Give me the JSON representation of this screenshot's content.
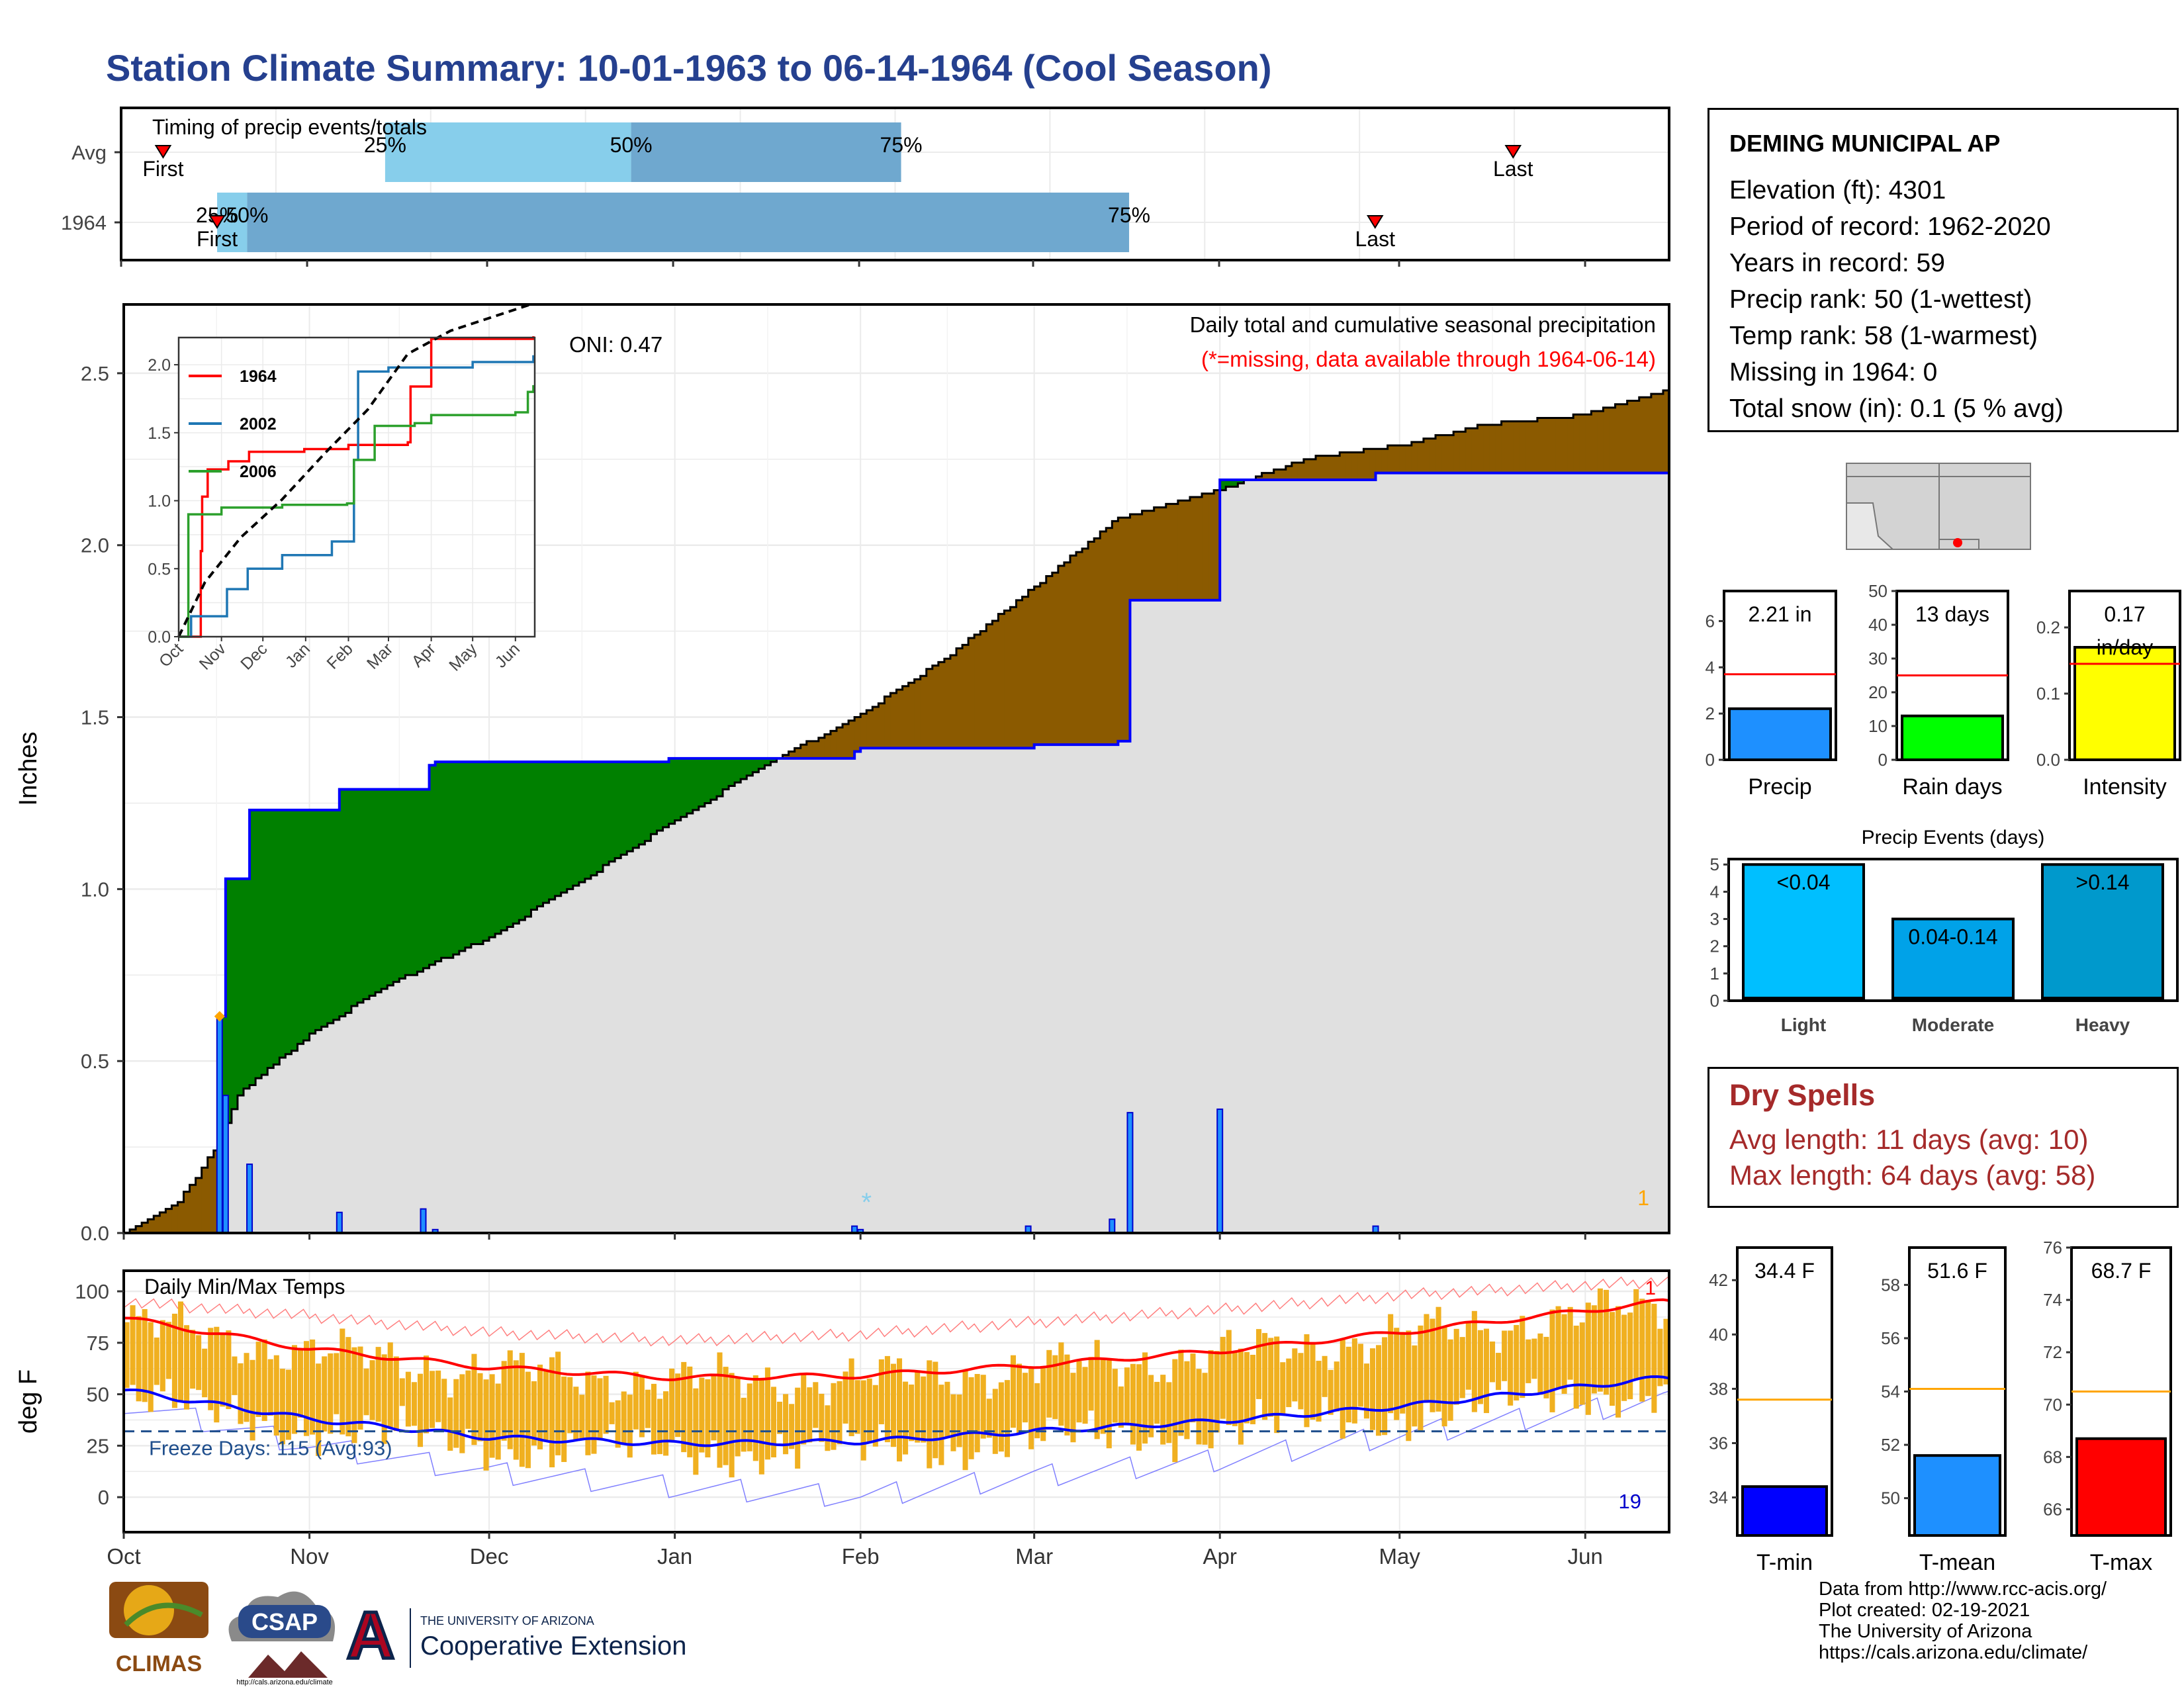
{
  "page": {
    "title": "Station Climate Summary: 10-01-1963 to 06-14-1964 (Cool Season)"
  },
  "station": {
    "name": "DEMING MUNICIPAL AP",
    "lines": [
      "Elevation (ft): 4301",
      "Period of record: 1962-2020",
      "Years in record: 59",
      "Precip rank: 50 (1-wettest)",
      "Temp rank: 58 (1-warmest)",
      "Missing in 1964: 0",
      "Total snow (in): 0.1 (5 % avg)"
    ]
  },
  "dry_spells": {
    "title": "Dry Spells",
    "avg_length": "Avg length: 11 days (avg: 10)",
    "max_length": "Max length: 64 days (avg: 58)"
  },
  "credits": [
    "Data from http://www.rcc-acis.org/",
    "Plot created: 02-19-2021",
    "The University of Arizona",
    "https://cals.arizona.edu/climate/"
  ],
  "logos": {
    "climas": "CLIMAS",
    "csap": "CSAP",
    "csap_url": "http://cals.arizona.edu/climate",
    "ua_line1": "THE UNIVERSITY OF ARIZONA",
    "ua_line2": "Cooperative Extension",
    "ua_letter": "A"
  },
  "colors": {
    "title": "#25408f",
    "bar_light": "#87ceeb",
    "bar_dark": "#6fa8cf",
    "green": "#008000",
    "brown": "#8b5a00",
    "grey_fill": "#e0e0e0",
    "obs_line": "#0000ff",
    "precip_bar": "#1e90ff",
    "raindays_bar": "#00ff00",
    "intensity_bar": "#ffff00",
    "event_light": "#00bfff",
    "event_mod": "#00a2e8",
    "event_heavy": "#0099cc",
    "tmin": "#0000ff",
    "tmean": "#1e90ff",
    "tmax": "#ff0000",
    "temp_bars": "#f0b020"
  },
  "chart_data": [
    {
      "id": "timing",
      "type": "bar",
      "title": "Timing of precip events/totals",
      "categories": [
        "Avg",
        "1964"
      ],
      "x_domain": [
        "10-01",
        "06-14"
      ],
      "rows": [
        {
          "label": "Avg",
          "q25": "11-14",
          "q50": "12-25",
          "q75": "02-08",
          "first": "10-08",
          "last": "05-20",
          "q25_label": "25%",
          "q50_label": "50%",
          "q75_label": "75%",
          "first_label": "First",
          "last_label": "Last"
        },
        {
          "label": "1964",
          "q25": "10-17",
          "q50": "10-22",
          "q75": "03-17",
          "first": "10-17",
          "last": "04-27",
          "q25_label": "25%",
          "q50_label": "50%",
          "q75_label": "75%",
          "first_label": "First",
          "last_label": "Last"
        }
      ]
    },
    {
      "id": "precip",
      "type": "area",
      "title": "Daily total and cumulative seasonal precipitation",
      "subtitle": "(*=missing, data available through 1964-06-14)",
      "annotation": "ONI: 0.47",
      "missing_count": "1",
      "ylabel": "Inches",
      "ylim": [
        0,
        2.7
      ],
      "yticks": [
        "0.0",
        "0.5",
        "1.0",
        "1.5",
        "2.0",
        "2.5"
      ],
      "xticks": [
        "Oct",
        "Nov",
        "Dec",
        "Jan",
        "Feb",
        "Mar",
        "Apr",
        "May",
        "Jun"
      ],
      "x_start": "10-01",
      "x_end": "06-14",
      "observed_cumulative": [
        [
          "10-01",
          0
        ],
        [
          "10-17",
          0.63
        ],
        [
          "10-18",
          1.03
        ],
        [
          "10-22",
          1.23
        ],
        [
          "11-06",
          1.29
        ],
        [
          "11-21",
          1.36
        ],
        [
          "11-22",
          1.37
        ],
        [
          "12-01",
          1.37
        ],
        [
          "12-31",
          1.38
        ],
        [
          "01-31",
          1.4
        ],
        [
          "02-01",
          1.41
        ],
        [
          "03-01",
          1.42
        ],
        [
          "03-15",
          1.43
        ],
        [
          "03-17",
          1.84
        ],
        [
          "04-01",
          2.19
        ],
        [
          "04-27",
          2.21
        ],
        [
          "06-14",
          2.21
        ]
      ],
      "average_cumulative": [
        [
          "10-01",
          0
        ],
        [
          "10-10",
          0.09
        ],
        [
          "10-16",
          0.24
        ],
        [
          "10-20",
          0.4
        ],
        [
          "11-01",
          0.58
        ],
        [
          "11-15",
          0.73
        ],
        [
          "12-01",
          0.86
        ],
        [
          "12-15",
          1.01
        ],
        [
          "01-01",
          1.2
        ],
        [
          "01-15",
          1.35
        ],
        [
          "02-01",
          1.51
        ],
        [
          "02-15",
          1.67
        ],
        [
          "03-01",
          1.88
        ],
        [
          "03-15",
          2.08
        ],
        [
          "04-01",
          2.16
        ],
        [
          "04-15",
          2.25
        ],
        [
          "05-01",
          2.29
        ],
        [
          "05-15",
          2.35
        ],
        [
          "06-01",
          2.38
        ],
        [
          "06-14",
          2.45
        ]
      ],
      "daily_precip": [
        [
          "10-17",
          0.63
        ],
        [
          "10-18",
          0.4
        ],
        [
          "10-22",
          0.2
        ],
        [
          "11-06",
          0.06
        ],
        [
          "11-20",
          0.07
        ],
        [
          "11-22",
          0.01
        ],
        [
          "01-31",
          0.02
        ],
        [
          "02-01",
          0.01
        ],
        [
          "02-29",
          0.02
        ],
        [
          "03-14",
          0.04
        ],
        [
          "03-17",
          0.35
        ],
        [
          "04-01",
          0.36
        ],
        [
          "04-27",
          0.02
        ]
      ],
      "snow_markers": [
        [
          "02-02",
          0.09
        ]
      ],
      "max_marker": [
        [
          "10-17",
          0.63
        ]
      ]
    },
    {
      "id": "inset",
      "type": "line",
      "xticks": [
        "Oct",
        "Nov",
        "Dec",
        "Jan",
        "Feb",
        "Mar",
        "Apr",
        "May",
        "Jun"
      ],
      "yticks": [
        "0.0",
        "0.5",
        "1.0",
        "1.5",
        "2.0"
      ],
      "ylim": [
        0,
        2.2
      ],
      "series": [
        {
          "name": "1964",
          "color": "#ff0000",
          "values": [
            [
              "10-01",
              0
            ],
            [
              "10-17",
              0.63
            ],
            [
              "10-18",
              1.03
            ],
            [
              "10-22",
              1.23
            ],
            [
              "11-06",
              1.29
            ],
            [
              "11-21",
              1.36
            ],
            [
              "12-31",
              1.38
            ],
            [
              "02-01",
              1.41
            ],
            [
              "03-15",
              1.43
            ],
            [
              "03-17",
              1.84
            ],
            [
              "04-01",
              2.19
            ],
            [
              "06-14",
              2.21
            ]
          ]
        },
        {
          "name": "2002",
          "color": "#1f77b4",
          "values": [
            [
              "10-01",
              0
            ],
            [
              "10-10",
              0.15
            ],
            [
              "11-05",
              0.35
            ],
            [
              "11-20",
              0.5
            ],
            [
              "12-15",
              0.6
            ],
            [
              "01-20",
              0.7
            ],
            [
              "02-05",
              1.3
            ],
            [
              "02-08",
              1.95
            ],
            [
              "03-01",
              1.98
            ],
            [
              "04-01",
              1.98
            ],
            [
              "05-01",
              2.02
            ],
            [
              "06-14",
              2.07
            ]
          ]
        },
        {
          "name": "2006",
          "color": "#2ca02c",
          "values": [
            [
              "10-01",
              0
            ],
            [
              "10-08",
              0.9
            ],
            [
              "11-01",
              0.95
            ],
            [
              "12-15",
              0.97
            ],
            [
              "01-31",
              0.98
            ],
            [
              "02-05",
              1.3
            ],
            [
              "02-15",
              1.3
            ],
            [
              "02-20",
              1.55
            ],
            [
              "03-20",
              1.57
            ],
            [
              "04-01",
              1.63
            ],
            [
              "06-01",
              1.65
            ],
            [
              "06-10",
              1.8
            ],
            [
              "06-14",
              1.85
            ]
          ]
        },
        {
          "name": "",
          "color": "#000000",
          "dashed": true,
          "values": [
            [
              "10-01",
              0
            ],
            [
              "10-20",
              0.4
            ],
            [
              "11-15",
              0.73
            ],
            [
              "12-15",
              1.01
            ],
            [
              "01-15",
              1.35
            ],
            [
              "02-15",
              1.67
            ],
            [
              "03-15",
              2.08
            ],
            [
              "04-15",
              2.25
            ],
            [
              "05-15",
              2.35
            ],
            [
              "06-14",
              2.45
            ]
          ]
        }
      ]
    },
    {
      "id": "temps",
      "type": "bar",
      "title": "Daily Min/Max Temps",
      "ylabel": "deg F",
      "ylim": [
        -17,
        110
      ],
      "yticks": [
        "0",
        "25",
        "50",
        "75",
        "100"
      ],
      "xticks": [
        "Oct",
        "Nov",
        "Dec",
        "Jan",
        "Feb",
        "Mar",
        "Apr",
        "May",
        "Jun"
      ],
      "freeze_line": 32,
      "freeze_label": "Freeze Days: 115 (Avg:93)",
      "missing_label": "1",
      "count_label": "19",
      "avg_max": [
        [
          "10-01",
          87
        ],
        [
          "11-01",
          72
        ],
        [
          "12-01",
          63
        ],
        [
          "01-01",
          58
        ],
        [
          "02-01",
          59
        ],
        [
          "03-01",
          64
        ],
        [
          "04-01",
          71
        ],
        [
          "05-01",
          80
        ],
        [
          "06-14",
          95
        ]
      ],
      "avg_min": [
        [
          "10-01",
          52
        ],
        [
          "11-01",
          38
        ],
        [
          "12-01",
          29
        ],
        [
          "01-01",
          26
        ],
        [
          "02-01",
          27
        ],
        [
          "03-01",
          32
        ],
        [
          "04-01",
          37
        ],
        [
          "05-01",
          44
        ],
        [
          "06-14",
          58
        ]
      ],
      "record_max": [
        [
          "10-01",
          95
        ],
        [
          "11-01",
          88
        ],
        [
          "12-01",
          80
        ],
        [
          "01-01",
          76
        ],
        [
          "02-01",
          79
        ],
        [
          "03-01",
          85
        ],
        [
          "04-01",
          91
        ],
        [
          "05-01",
          98
        ],
        [
          "06-14",
          105
        ]
      ],
      "record_min": [
        [
          "10-01",
          46
        ],
        [
          "11-01",
          25
        ],
        [
          "12-01",
          12
        ],
        [
          "01-01",
          5
        ],
        [
          "02-01",
          0
        ],
        [
          "03-01",
          10
        ],
        [
          "04-01",
          18
        ],
        [
          "05-01",
          30
        ],
        [
          "06-14",
          47
        ]
      ]
    },
    {
      "id": "season_bars",
      "type": "bar",
      "panels": [
        {
          "label": "Precip",
          "value": 2.21,
          "avg": 3.7,
          "value_label": "2.21 in",
          "yticks": [
            "0",
            "2",
            "4",
            "6"
          ],
          "ylim": [
            0,
            7.3
          ]
        },
        {
          "label": "Rain days",
          "value": 13,
          "avg": 25,
          "value_label": "13 days",
          "yticks": [
            "0",
            "10",
            "20",
            "30",
            "40",
            "50"
          ],
          "ylim": [
            0,
            50
          ]
        },
        {
          "label": "Intensity",
          "value": 0.17,
          "avg": 0.145,
          "value_label": "0.17",
          "value_unit": "in/day",
          "yticks": [
            "0.0",
            "0.1",
            "0.2"
          ],
          "ylim": [
            0,
            0.255
          ]
        }
      ]
    },
    {
      "id": "events",
      "type": "bar",
      "title": "Precip Events (days)",
      "categories": [
        "Light",
        "Moderate",
        "Heavy"
      ],
      "values": [
        5,
        3,
        5
      ],
      "bar_labels": [
        "<0.04",
        "0.04-0.14",
        ">0.14"
      ],
      "yticks": [
        "0",
        "1",
        "2",
        "3",
        "4",
        "5"
      ],
      "ylim": [
        0,
        5.2
      ]
    },
    {
      "id": "temp_bars",
      "type": "bar",
      "panels": [
        {
          "label": "T-min",
          "value": 34.4,
          "avg": 37.6,
          "value_label": "34.4 F",
          "yticks": [
            "34",
            "36",
            "38",
            "40",
            "42"
          ],
          "ylim": [
            32.6,
            43.2
          ]
        },
        {
          "label": "T-mean",
          "value": 51.6,
          "avg": 54.1,
          "value_label": "51.6 F",
          "yticks": [
            "50",
            "52",
            "54",
            "56",
            "58"
          ],
          "ylim": [
            48.6,
            59.4
          ]
        },
        {
          "label": "T-max",
          "value": 68.7,
          "avg": 70.5,
          "value_label": "68.7 F",
          "yticks": [
            "66",
            "68",
            "70",
            "72",
            "74",
            "76"
          ],
          "ylim": [
            65.0,
            76.0
          ]
        }
      ]
    }
  ]
}
